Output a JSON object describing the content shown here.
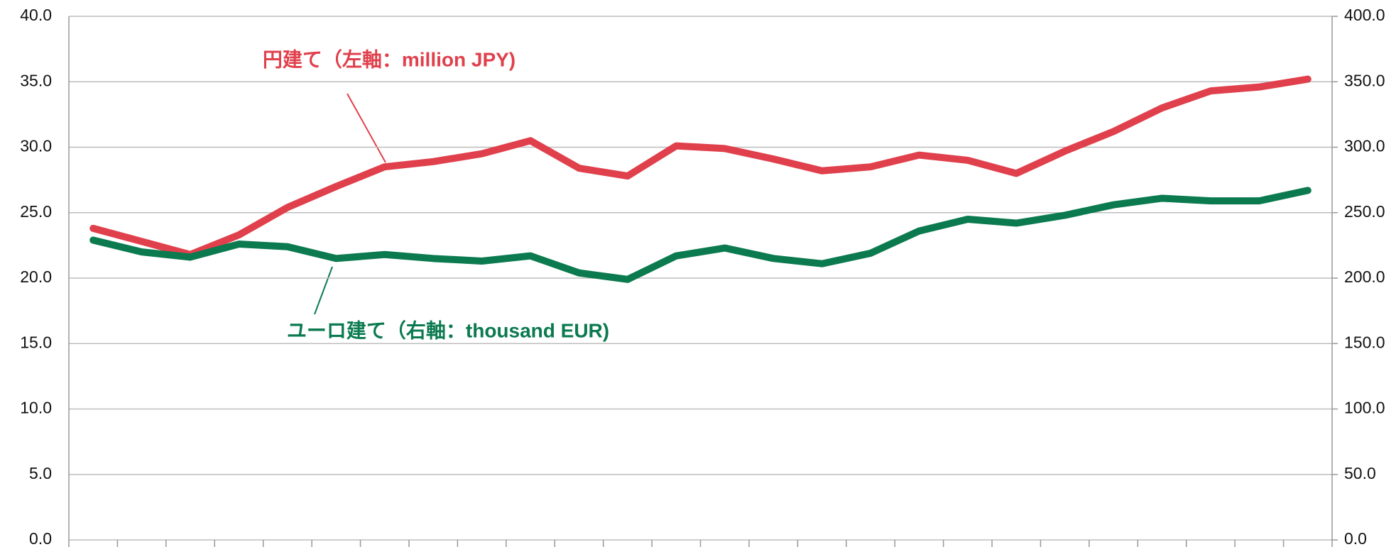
{
  "chart_data": {
    "type": "line",
    "categories": [
      null,
      null,
      null,
      null,
      null,
      null,
      null,
      null,
      null,
      null,
      null,
      null,
      null,
      null,
      null,
      null,
      null,
      null,
      null,
      null,
      null,
      null,
      null,
      null,
      null,
      null
    ],
    "series": [
      {
        "name": "円建て（左軸：million JPY)",
        "color": "#e0404c",
        "axis": "y",
        "values": [
          23.8,
          22.8,
          21.8,
          23.3,
          25.4,
          27.0,
          28.5,
          28.9,
          29.5,
          30.5,
          28.4,
          27.8,
          30.1,
          29.9,
          29.1,
          28.2,
          28.5,
          29.4,
          29.0,
          28.0,
          29.7,
          31.2,
          33.0,
          34.3,
          34.6,
          35.2
        ]
      },
      {
        "name": "ユーロ建て（右軸：thousand EUR)",
        "color": "#0b7a4f",
        "axis": "y2",
        "values": [
          229,
          220,
          216,
          226,
          224,
          215,
          218,
          215,
          213,
          217,
          204,
          199,
          217,
          223,
          215,
          211,
          219,
          236,
          245,
          242,
          248,
          256,
          261,
          259,
          259,
          267
        ]
      }
    ],
    "ylim": [
      0,
      40
    ],
    "yticks": [
      {
        "value": 0,
        "label": "0.0"
      },
      {
        "value": 5,
        "label": "5.0"
      },
      {
        "value": 10,
        "label": "10.0"
      },
      {
        "value": 15,
        "label": "15.0"
      },
      {
        "value": 20,
        "label": "20.0"
      },
      {
        "value": 25,
        "label": "25.0"
      },
      {
        "value": 30,
        "label": "30.0"
      },
      {
        "value": 35,
        "label": "35.0"
      },
      {
        "value": 40,
        "label": "40.0"
      }
    ],
    "y2lim": [
      0,
      400
    ],
    "y2ticks": [
      {
        "value": 0,
        "label": "0.0"
      },
      {
        "value": 50,
        "label": "50.0"
      },
      {
        "value": 100,
        "label": "100.0"
      },
      {
        "value": 150,
        "label": "150.0"
      },
      {
        "value": 200,
        "label": "200.0"
      },
      {
        "value": 250,
        "label": "250.0"
      },
      {
        "value": 300,
        "label": "300.0"
      },
      {
        "value": 350,
        "label": "350.0"
      },
      {
        "value": 400,
        "label": "400.0"
      }
    ],
    "grid": true
  }
}
